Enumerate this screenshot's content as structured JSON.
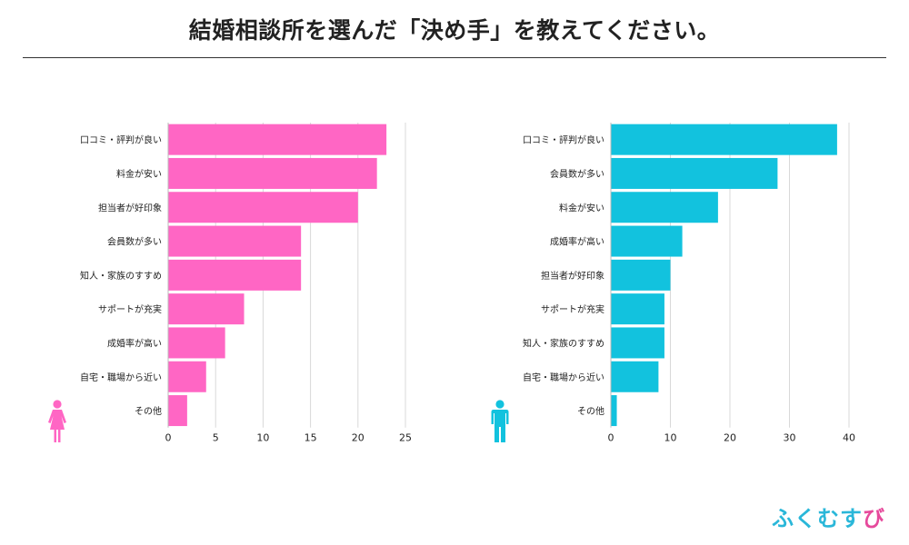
{
  "title": "結婚相談所を選んだ「決め手」を教えてください。",
  "brand": {
    "part1": "ふくむす",
    "part2": "び"
  },
  "colors": {
    "female": "#ff66c4",
    "male": "#12c2de",
    "grid": "#d9d9d9",
    "text": "#222222"
  },
  "chart_data": [
    {
      "type": "bar",
      "orientation": "horizontal",
      "name": "female",
      "icon": "female-icon",
      "categories": [
        "口コミ・評判が良い",
        "料金が安い",
        "担当者が好印象",
        "会員数が多い",
        "知人・家族のすすめ",
        "サポートが充実",
        "成婚率が高い",
        "自宅・職場から近い",
        "その他"
      ],
      "values": [
        23,
        22,
        20,
        14,
        14,
        8,
        6,
        4,
        2
      ],
      "xlim": [
        0,
        25
      ],
      "ticks": [
        0,
        5,
        10,
        15,
        20,
        25
      ],
      "grid": true
    },
    {
      "type": "bar",
      "orientation": "horizontal",
      "name": "male",
      "icon": "male-icon",
      "categories": [
        "口コミ・評判が良い",
        "会員数が多い",
        "料金が安い",
        "成婚率が高い",
        "担当者が好印象",
        "サポートが充実",
        "知人・家族のすすめ",
        "自宅・職場から近い",
        "その他"
      ],
      "values": [
        38,
        28,
        18,
        12,
        10,
        9,
        9,
        8,
        1
      ],
      "xlim": [
        0,
        40
      ],
      "ticks": [
        0,
        10,
        20,
        30,
        40
      ],
      "grid": true
    }
  ]
}
